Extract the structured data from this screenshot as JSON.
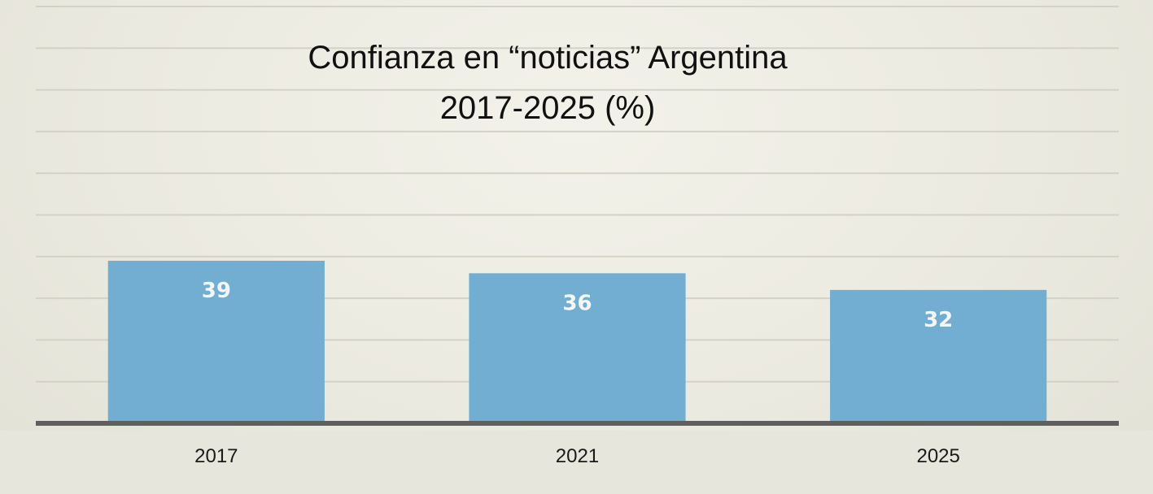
{
  "chart_data": {
    "type": "bar",
    "title": "Confianza en “noticias” Argentina",
    "subtitle": "2017-2025 (%)",
    "categories": [
      "2017",
      "2021",
      "2025"
    ],
    "values": [
      39,
      36,
      32
    ],
    "data_labels": [
      "39",
      "36",
      "32"
    ],
    "xlabel": "",
    "ylabel": "",
    "ylim": [
      0,
      100
    ],
    "grid": true,
    "legend": "none"
  },
  "colors": {
    "bar": "#72aed2",
    "gridline": "#d3d2c6",
    "baseline": "#5f5f5f",
    "background": "#ebeae0"
  }
}
